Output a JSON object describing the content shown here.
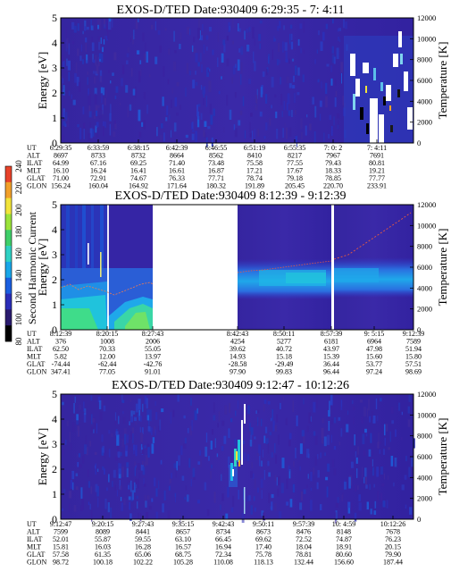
{
  "chart_data": {
    "colorbar": {
      "label": "Second Harmonic Current",
      "ticks": [
        "80",
        "100",
        "120",
        "140",
        "160",
        "180",
        "200",
        "220",
        "240"
      ],
      "colors": [
        "#000000",
        "#2a1b6e",
        "#2b2db8",
        "#1a5ee0",
        "#19a6e8",
        "#2fd1c4",
        "#3fcf6a",
        "#9be33a",
        "#f2e43a",
        "#f2a02a",
        "#e8422a"
      ]
    },
    "panels": [
      {
        "type": "heatmap",
        "title": "EXOS-D/TED   Date:930409   6:29:35 - 7: 4:11",
        "ylabel": "Energy [eV]",
        "y2label": "Temperature [K]",
        "yticks": [
          "0",
          "1",
          "2",
          "3",
          "4",
          "5"
        ],
        "y2ticks": [
          "0",
          "2000",
          "4000",
          "6000",
          "8000",
          "10000",
          "12000"
        ],
        "orbit": {
          "rows": [
            "UT",
            "ALT",
            "ILAT",
            "MLT",
            "GLAT",
            "GLON"
          ],
          "cols": [
            [
              "6:29:35",
              "8697",
              "64.99",
              "16.10",
              "71.00",
              "156.24"
            ],
            [
              "6:33:59",
              "8733",
              "67.16",
              "16.24",
              "72.91",
              "160.04"
            ],
            [
              "6:38:15",
              "8732",
              "69.25",
              "16.41",
              "74.67",
              "164.92"
            ],
            [
              "6:42:39",
              "8664",
              "71.40",
              "16.61",
              "76.33",
              "171.64"
            ],
            [
              "6:46:55",
              "8562",
              "73.48",
              "16.87",
              "77.71",
              "180.32"
            ],
            [
              "6:51:19",
              "8410",
              "75.58",
              "17.21",
              "78.74",
              "191.89"
            ],
            [
              "6:55:35",
              "8217",
              "77.55",
              "17.67",
              "79.18",
              "205.45"
            ],
            [
              "7: 0: 2",
              "7967",
              "79.43",
              "18.33",
              "78.85",
              "220.70"
            ],
            [
              "7: 4:11",
              "7691",
              "80.81",
              "19.21",
              "77.77",
              "233.91"
            ]
          ]
        }
      },
      {
        "type": "heatmap",
        "title": "EXOS-D/TED   Date:930409   8:12:39 - 9:12:39",
        "ylabel": "Energy [eV]",
        "y2label": "Temperature [K]",
        "yticks": [
          "0",
          "1",
          "2",
          "3",
          "4",
          "5"
        ],
        "y2ticks": [
          "0",
          "2000",
          "4000",
          "6000",
          "8000",
          "10000",
          "12000"
        ],
        "orbit": {
          "rows": [
            "UT",
            "ALT",
            "ILAT",
            "MLT",
            "GLAT",
            "GLON"
          ],
          "cols": [
            [
              "8:12:39",
              "376",
              "62.50",
              "5.82",
              "-74.44",
              "347.41"
            ],
            [
              "8:20:15",
              "1008",
              "70.33",
              "12.00",
              "-62.44",
              "77.05"
            ],
            [
              "8:27:43",
              "2006",
              "55.05",
              "13.97",
              "-42.76",
              "91.01"
            ],
            [
              "8:42:43",
              "4254",
              "39.62",
              "14.93",
              "-28.58",
              "97.90"
            ],
            [
              "8:50:11",
              "5277",
              "40.72",
              "15.18",
              "-29.49",
              "99.83"
            ],
            [
              "8:57:39",
              "6181",
              "43.97",
              "15.39",
              "36.44",
              "96.44"
            ],
            [
              "9: 5:15",
              "6964",
              "47.98",
              "15.60",
              "53.77",
              "97.24"
            ],
            [
              "9:12:39",
              "7589",
              "51.94",
              "15.80",
              "57.51",
              "98.69"
            ]
          ]
        }
      },
      {
        "type": "heatmap",
        "title": "EXOS-D/TED   Date:930409   9:12:47 - 10:12:26",
        "ylabel": "Energy [eV]",
        "y2label": "Temperature [K]",
        "yticks": [
          "0",
          "1",
          "2",
          "3",
          "4",
          "5"
        ],
        "y2ticks": [
          "0",
          "2000",
          "4000",
          "6000",
          "8000",
          "10000",
          "12000"
        ],
        "orbit": {
          "rows": [
            "UT",
            "ALT",
            "ILAT",
            "MLT",
            "GLAT",
            "GLON"
          ],
          "cols": [
            [
              "9:12:47",
              "7599",
              "52.01",
              "15.81",
              "57.58",
              "98.72"
            ],
            [
              "9:20:15",
              "8089",
              "55.87",
              "16.03",
              "61.35",
              "100.18"
            ],
            [
              "9:27:43",
              "8441",
              "59.55",
              "16.28",
              "65.06",
              "102.22"
            ],
            [
              "9:35:15",
              "8657",
              "63.10",
              "16.57",
              "68.75",
              "105.28"
            ],
            [
              "9:42:43",
              "8734",
              "66.45",
              "16.94",
              "72.34",
              "110.08"
            ],
            [
              "9:50:11",
              "8673",
              "69.62",
              "17.40",
              "75.78",
              "118.13"
            ],
            [
              "9:57:39",
              "8476",
              "72.52",
              "18.04",
              "78.81",
              "132.44"
            ],
            [
              "10: 4:59",
              "8148",
              "74.87",
              "18.91",
              "80.60",
              "156.60"
            ],
            [
              "10:12:26",
              "7678",
              "76.23",
              "20.15",
              "79.90",
              "187.44"
            ]
          ]
        }
      }
    ]
  }
}
